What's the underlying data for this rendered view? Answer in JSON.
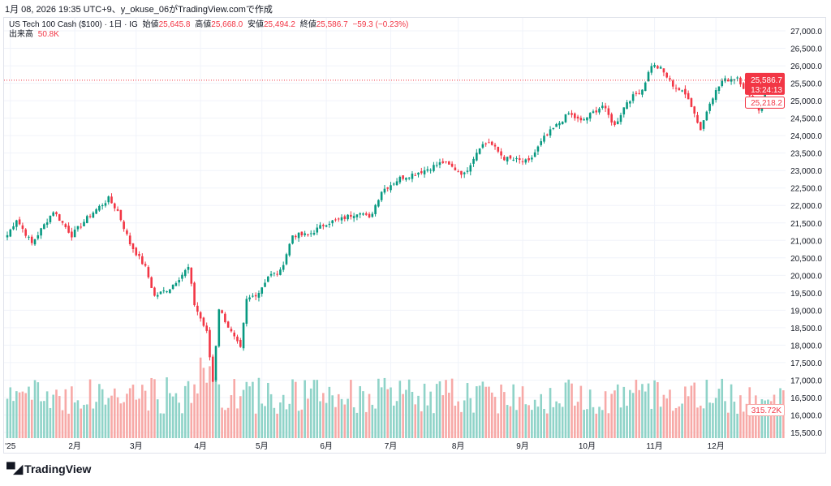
{
  "caption": "1月 08, 2026 19:35 UTC+9、y_okuse_06がTradingView.comで作成",
  "legend": {
    "symbol": "US Tech 100 Cash ($100) · 1日 · IG",
    "open_label": "始値",
    "open": "25,645.8",
    "high_label": "高値",
    "high": "25,668.0",
    "low_label": "安値",
    "low": "25,494.2",
    "close_label": "終値",
    "close": "25,586.7",
    "change": "−59.3 (−0.23%)",
    "volume_label": "出来高",
    "volume": "50.8K"
  },
  "price_tag": {
    "price": "25,586.7",
    "countdown": "13:24:13",
    "prev": "25,218.2",
    "volume": "315.72K"
  },
  "colors": {
    "up": "#089981",
    "down": "#f23645",
    "up_vol": "#8fd3c8",
    "down_vol": "#f7a9a7"
  },
  "brand": "TradingView",
  "chart_data": {
    "type": "candlestick",
    "title": "US Tech 100 Cash ($100) · 1日 · IG",
    "ylim": [
      15300,
      27300
    ],
    "y_ticks": [
      "15,500.0",
      "16,000.0",
      "16,500.0",
      "17,000.0",
      "17,500.0",
      "18,000.0",
      "18,500.0",
      "19,000.0",
      "19,500.0",
      "20,000.0",
      "20,500.0",
      "21,000.0",
      "21,500.0",
      "22,000.0",
      "22,500.0",
      "23,000.0",
      "23,500.0",
      "24,000.0",
      "24,500.0",
      "25,000.0",
      "25,500.0",
      "26,000.0",
      "26,500.0",
      "27,000.0"
    ],
    "x_ticks": [
      {
        "label": "'25",
        "day": 1
      },
      {
        "label": "2月",
        "day": 22
      },
      {
        "label": "3月",
        "day": 42
      },
      {
        "label": "4月",
        "day": 63
      },
      {
        "label": "5月",
        "day": 83
      },
      {
        "label": "6月",
        "day": 104
      },
      {
        "label": "7月",
        "day": 125
      },
      {
        "label": "8月",
        "day": 147
      },
      {
        "label": "9月",
        "day": 168
      },
      {
        "label": "10月",
        "day": 189
      },
      {
        "label": "11月",
        "day": 211
      },
      {
        "label": "12月",
        "day": 231
      }
    ],
    "total_days": 254,
    "close_keypoints": [
      [
        0,
        21150
      ],
      [
        3,
        21610
      ],
      [
        8,
        20910
      ],
      [
        15,
        21840
      ],
      [
        21,
        21150
      ],
      [
        27,
        21730
      ],
      [
        33,
        22190
      ],
      [
        36,
        21840
      ],
      [
        40,
        20910
      ],
      [
        45,
        20220
      ],
      [
        48,
        19400
      ],
      [
        53,
        19640
      ],
      [
        59,
        20220
      ],
      [
        61,
        19170
      ],
      [
        65,
        18360
      ],
      [
        67,
        16960
      ],
      [
        69,
        19060
      ],
      [
        73,
        18360
      ],
      [
        76,
        17890
      ],
      [
        78,
        19290
      ],
      [
        82,
        19520
      ],
      [
        85,
        19980
      ],
      [
        89,
        20100
      ],
      [
        93,
        21150
      ],
      [
        98,
        21150
      ],
      [
        104,
        21500
      ],
      [
        109,
        21610
      ],
      [
        115,
        21840
      ],
      [
        118,
        21610
      ],
      [
        122,
        22420
      ],
      [
        128,
        22780
      ],
      [
        136,
        23010
      ],
      [
        142,
        23240
      ],
      [
        149,
        22890
      ],
      [
        154,
        23700
      ],
      [
        157,
        23820
      ],
      [
        162,
        23350
      ],
      [
        170,
        23240
      ],
      [
        175,
        23940
      ],
      [
        183,
        24630
      ],
      [
        187,
        24400
      ],
      [
        194,
        24860
      ],
      [
        198,
        24280
      ],
      [
        202,
        24980
      ],
      [
        207,
        25330
      ],
      [
        210,
        26030
      ],
      [
        213,
        25910
      ],
      [
        217,
        25450
      ],
      [
        222,
        25100
      ],
      [
        226,
        24170
      ],
      [
        229,
        24980
      ],
      [
        233,
        25560
      ],
      [
        238,
        25680
      ],
      [
        242,
        25100
      ],
      [
        245,
        24750
      ],
      [
        248,
        25560
      ],
      [
        253,
        25587
      ]
    ]
  }
}
